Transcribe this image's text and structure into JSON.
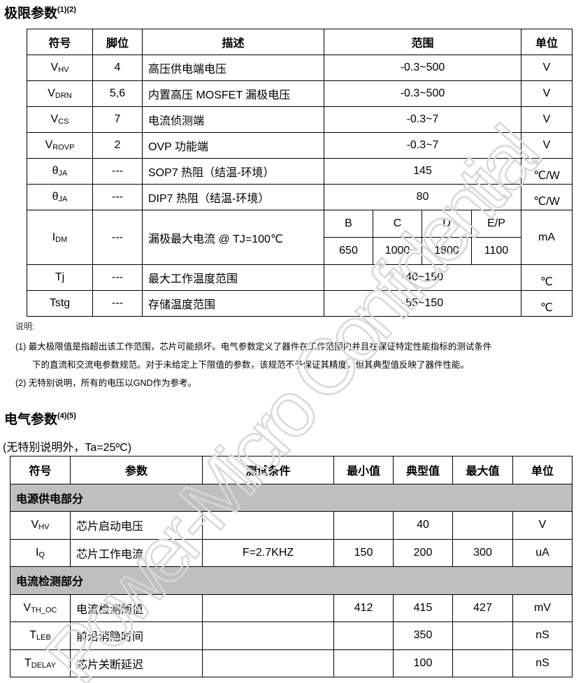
{
  "section1": {
    "title": "极限参数",
    "title_sup": "(1)(2)",
    "headers": [
      "符号",
      "脚位",
      "描述",
      "范围",
      "单位"
    ],
    "rows": [
      {
        "sym": "V",
        "sub": "HV",
        "pin": "4",
        "desc": "高压供电端电压",
        "range": "-0.3~500",
        "unit": "V"
      },
      {
        "sym": "V",
        "sub": "DRN",
        "pin": "5,6",
        "desc": "内置高压 MOSFET 漏极电压",
        "range": "-0.3~500",
        "unit": "V"
      },
      {
        "sym": "V",
        "sub": "CS",
        "pin": "7",
        "desc": "电流侦测端",
        "range": "-0.3~7",
        "unit": "V"
      },
      {
        "sym": "V",
        "sub": "ROVP",
        "pin": "2",
        "desc": "OVP 功能端",
        "range": "-0.3~7",
        "unit": "V"
      },
      {
        "sym": "θ",
        "sub": "JA",
        "pin": "---",
        "desc": "SOP7 热阻（结温-环境）",
        "range": "145",
        "unit": "℃/W"
      },
      {
        "sym": "θ",
        "sub": "JA",
        "pin": "---",
        "desc": "DIP7 热阻（结温-环境）",
        "range": "80",
        "unit": "℃/W"
      }
    ],
    "idm": {
      "sym": "I",
      "sub": "DM",
      "pin": "---",
      "desc": "漏极最大电流 @ TJ=100℃",
      "grades": [
        "B",
        "C",
        "D",
        "E/P"
      ],
      "values": [
        "650",
        "1000",
        "1800",
        "1100"
      ],
      "unit": "mA"
    },
    "rows2": [
      {
        "sym": "Tj",
        "sub": "",
        "pin": "---",
        "desc": "最大工作温度范围",
        "range": "-40~150",
        "unit": "℃"
      },
      {
        "sym": "Tstg",
        "sub": "",
        "pin": "---",
        "desc": "存储温度范围",
        "range": "-55~150",
        "unit": "℃"
      }
    ],
    "notes": {
      "label": "说明:",
      "n1a": "(1) 最大极限值是指超出该工作范围，芯片可能损坏。电气参数定义了器件在工作范围内并且在保证特定性能指标的测试条件",
      "n1b": "下的直流和交流电参数规范。对于未给定上下限值的参数，该规范不予保证其精度，但其典型值反映了器件性能。",
      "n2": "(2) 无特别说明，所有的电压以GND作为参考。"
    }
  },
  "section2": {
    "title": "电气参数",
    "title_sup": "(4)(5)",
    "condition": "(无特别说明外，Ta=25ºC)",
    "headers": [
      "符号",
      "参数",
      "测试条件",
      "最小值",
      "典型值",
      "最大值",
      "单位"
    ],
    "groups": [
      {
        "name": "电源供电部分",
        "rows": [
          {
            "sym": "V",
            "sub": "HV",
            "param": "芯片启动电压",
            "cond": "",
            "min": "",
            "typ": "40",
            "max": "",
            "unit": "V"
          },
          {
            "sym": "I",
            "sub": "Q",
            "param": "芯片工作电流",
            "cond": "F=2.7KHZ",
            "min": "150",
            "typ": "200",
            "max": "300",
            "unit": "uA"
          }
        ]
      },
      {
        "name": "电流检测部分",
        "rows": [
          {
            "sym": "V",
            "sub": "TH_OC",
            "param": "电流检测阈值",
            "cond": "",
            "min": "412",
            "typ": "415",
            "max": "427",
            "unit": "mV"
          },
          {
            "sym": "T",
            "sub": "LEB",
            "param": "前沿消隐时间",
            "cond": "",
            "min": "",
            "typ": "350",
            "max": "",
            "unit": "nS"
          },
          {
            "sym": "T",
            "sub": "DELAY",
            "param": "芯片关断延迟",
            "cond": "",
            "min": "",
            "typ": "100",
            "max": "",
            "unit": "nS"
          }
        ]
      }
    ]
  },
  "watermark": {
    "text": "Power-Micro Confidential",
    "color": "#d8d8d8"
  }
}
